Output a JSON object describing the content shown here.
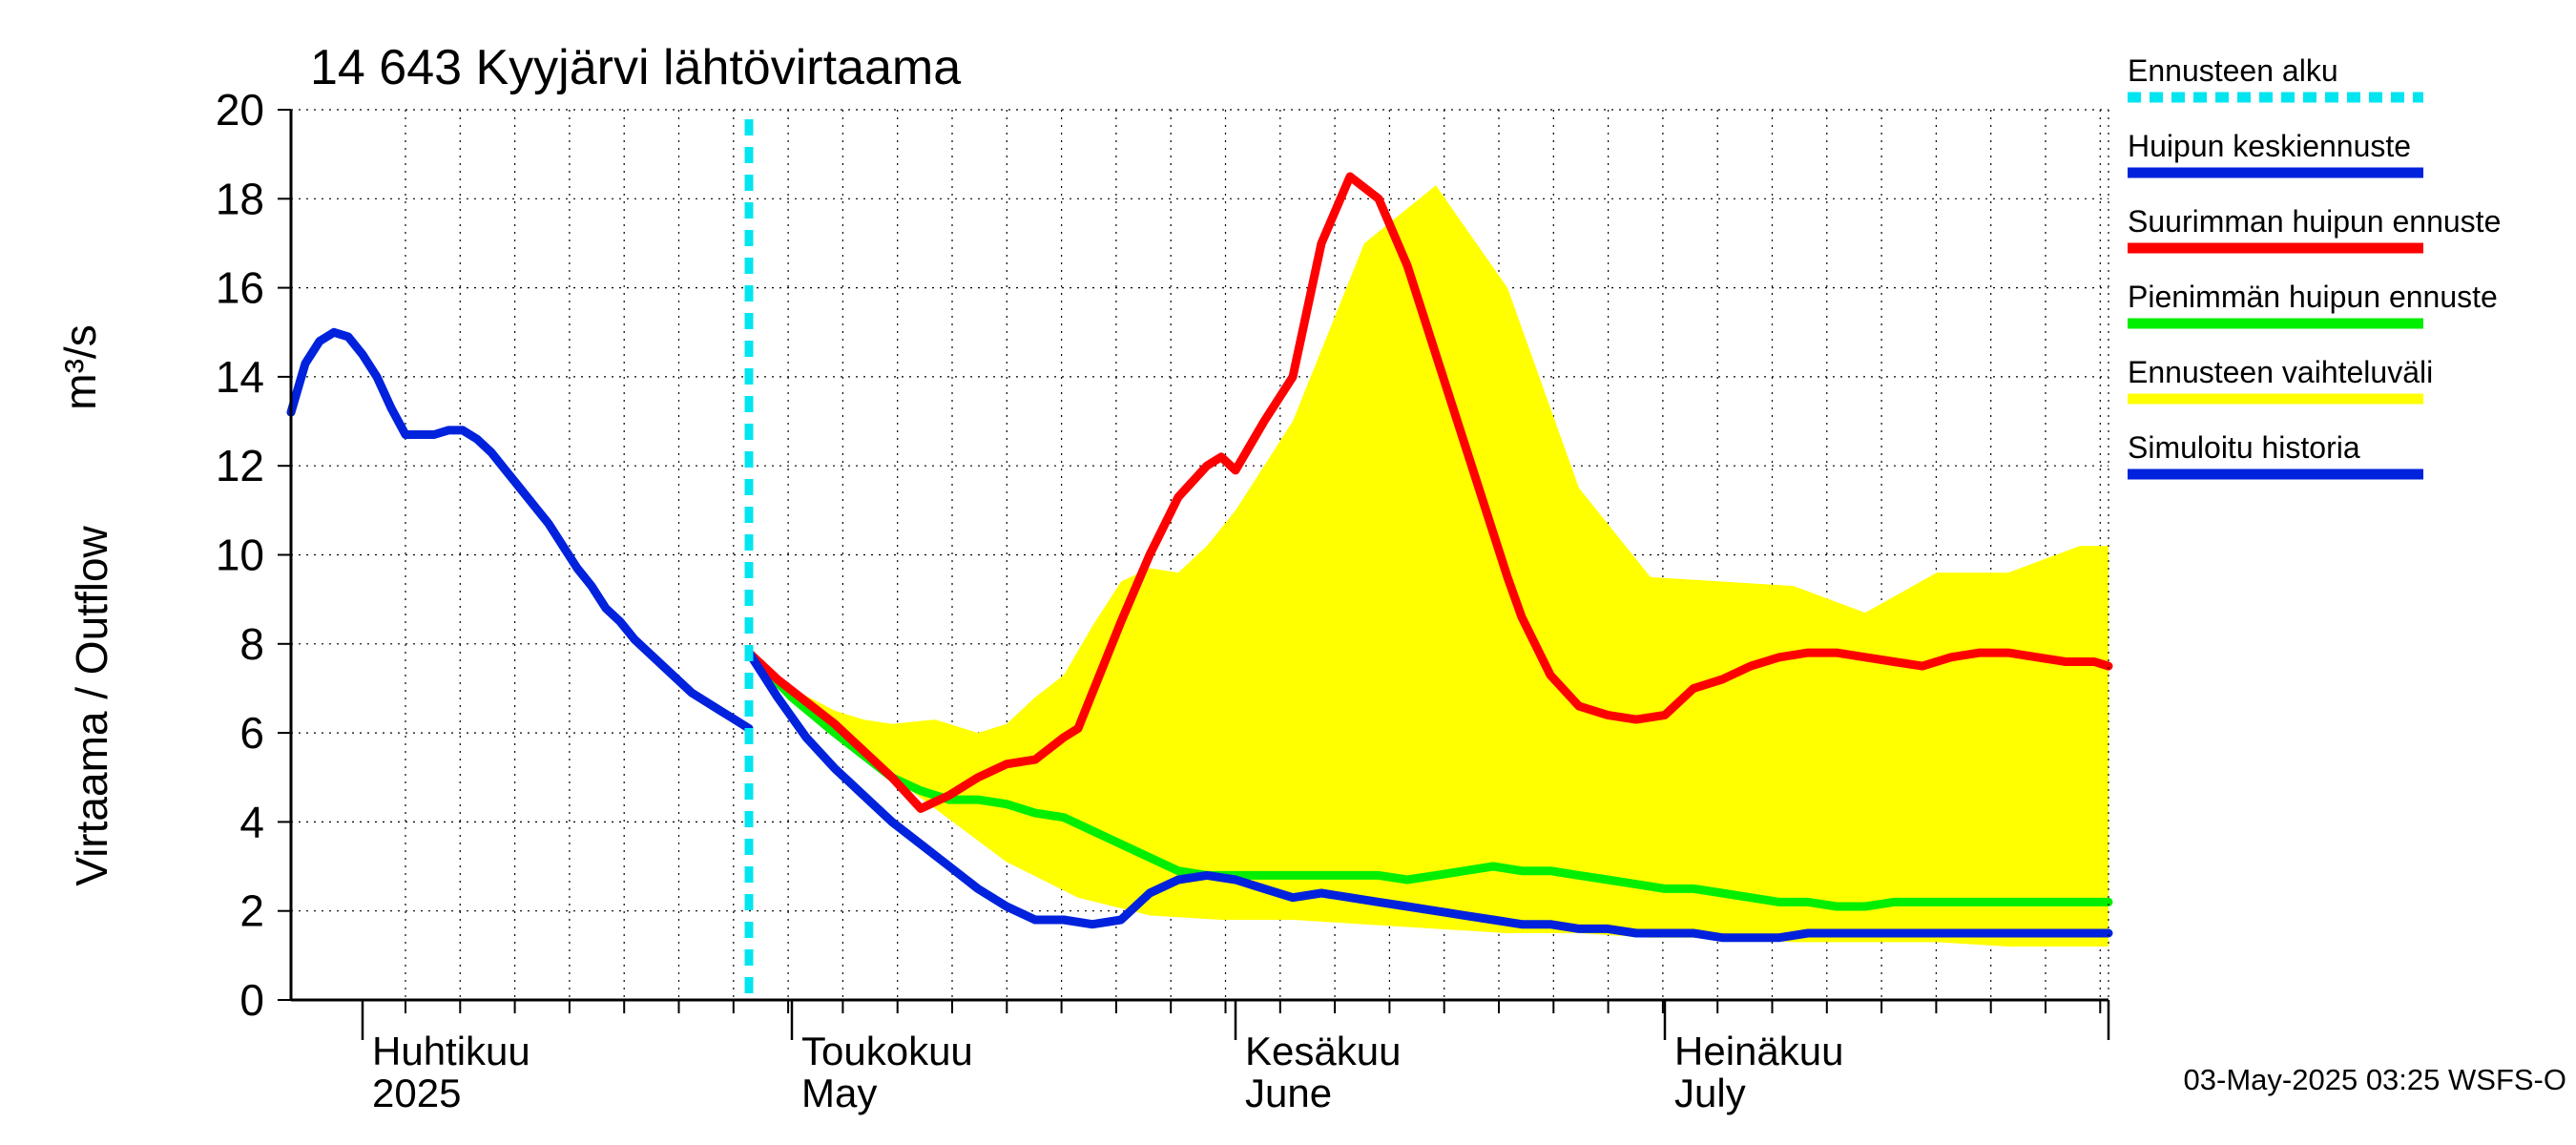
{
  "chart_data": {
    "type": "line",
    "title": "14 643 Kyyjärvi lähtövirtaama",
    "ylabel": "Virtaama / Outflow",
    "yunit": "m³/s",
    "ylim": [
      0,
      20
    ],
    "yticks": [
      0,
      2,
      4,
      6,
      8,
      10,
      12,
      14,
      16,
      18,
      20
    ],
    "x_range_days": [
      0,
      127
    ],
    "x_start_date": "2025-03-27",
    "month_starts_days": [
      5,
      35,
      66,
      96,
      127
    ],
    "month_labels": [
      {
        "fi": "Huhtikuu",
        "en": "2025",
        "day": 5
      },
      {
        "fi": "Toukokuu",
        "en": "May",
        "day": 35
      },
      {
        "fi": "Kesäkuu",
        "en": "June",
        "day": 66
      },
      {
        "fi": "Heinäkuu",
        "en": "July",
        "day": 96
      }
    ],
    "forecast_start_day": 32,
    "footer": "03-May-2025 03:25 WSFS-O",
    "legend": [
      {
        "label": "Ennusteen alku",
        "color": "#00e5f0",
        "dashed": true
      },
      {
        "label": "Huipun keskiennuste",
        "color": "#0022dd"
      },
      {
        "label": "Suurimman huipun ennuste",
        "color": "#ff0000"
      },
      {
        "label": "Pienimmän huipun ennuste",
        "color": "#00ee00"
      },
      {
        "label": "Ennusteen vaihteluväli",
        "color": "#ffff00"
      },
      {
        "label": "Simuloitu historia",
        "color": "#0022dd"
      }
    ],
    "series": [
      {
        "name": "Simuloitu historia",
        "color": "#0022dd",
        "x": [
          0,
          1,
          2,
          3,
          4,
          5,
          6,
          7,
          8,
          9,
          10,
          11,
          12,
          13,
          14,
          15,
          16,
          17,
          18,
          19,
          20,
          21,
          22,
          23,
          24,
          25,
          26,
          27,
          28,
          29,
          30,
          31,
          32
        ],
        "y": [
          13.2,
          14.3,
          14.8,
          15.0,
          14.9,
          14.5,
          14.0,
          13.3,
          12.7,
          12.7,
          12.7,
          12.8,
          12.8,
          12.6,
          12.3,
          11.9,
          11.5,
          11.1,
          10.7,
          10.2,
          9.7,
          9.3,
          8.8,
          8.5,
          8.1,
          7.8,
          7.5,
          7.2,
          6.9,
          6.7,
          6.5,
          6.3,
          6.1
        ]
      },
      {
        "name": "Ennusteen vaihteluväli (yläraja)",
        "color": "#ffff00",
        "x": [
          32,
          35,
          38,
          40,
          42,
          45,
          48,
          50,
          52,
          54,
          56,
          58,
          60,
          62,
          64,
          66,
          70,
          75,
          80,
          85,
          90,
          95,
          100,
          105,
          110,
          115,
          120,
          125,
          127
        ],
        "y": [
          7.8,
          7.0,
          6.5,
          6.3,
          6.2,
          6.3,
          6.0,
          6.2,
          6.8,
          7.3,
          8.4,
          9.4,
          9.7,
          9.6,
          10.2,
          11.0,
          13.0,
          17.0,
          18.3,
          16.0,
          11.5,
          9.5,
          9.4,
          9.3,
          8.7,
          9.6,
          9.6,
          10.2,
          10.2
        ]
      },
      {
        "name": "Ennusteen vaihteluväli (alaraja)",
        "color": "#ffff00",
        "x": [
          32,
          35,
          40,
          45,
          50,
          55,
          60,
          65,
          70,
          75,
          80,
          85,
          90,
          95,
          100,
          105,
          110,
          115,
          120,
          125,
          127
        ],
        "y": [
          7.8,
          6.8,
          5.5,
          4.3,
          3.1,
          2.3,
          1.9,
          1.8,
          1.8,
          1.7,
          1.6,
          1.5,
          1.5,
          1.4,
          1.4,
          1.3,
          1.3,
          1.3,
          1.2,
          1.2,
          1.2
        ]
      },
      {
        "name": "Suurimman huipun ennuste",
        "color": "#ff0000",
        "x": [
          32,
          34,
          36,
          38,
          40,
          42,
          44,
          46,
          48,
          50,
          52,
          54,
          55,
          56,
          58,
          60,
          62,
          64,
          65,
          66,
          68,
          70,
          72,
          74,
          76,
          78,
          79,
          80,
          82,
          84,
          85,
          86,
          88,
          90,
          92,
          94,
          96,
          98,
          100,
          102,
          104,
          106,
          108,
          110,
          112,
          114,
          116,
          118,
          120,
          122,
          124,
          126,
          127
        ],
        "y": [
          7.8,
          7.2,
          6.7,
          6.2,
          5.6,
          5.0,
          4.3,
          4.6,
          5.0,
          5.3,
          5.4,
          5.9,
          6.1,
          6.9,
          8.5,
          10.0,
          11.3,
          12.0,
          12.2,
          11.9,
          13.0,
          14.0,
          17.0,
          18.5,
          18.0,
          16.5,
          15.5,
          14.5,
          12.5,
          10.5,
          9.5,
          8.6,
          7.3,
          6.6,
          6.4,
          6.3,
          6.4,
          7.0,
          7.2,
          7.5,
          7.7,
          7.8,
          7.8,
          7.7,
          7.6,
          7.5,
          7.7,
          7.8,
          7.8,
          7.7,
          7.6,
          7.6,
          7.5
        ]
      },
      {
        "name": "Pienimmän huipun ennuste",
        "color": "#00ee00",
        "x": [
          32,
          35,
          38,
          40,
          42,
          44,
          46,
          48,
          50,
          52,
          54,
          56,
          58,
          60,
          62,
          64,
          66,
          68,
          70,
          72,
          74,
          76,
          78,
          80,
          82,
          84,
          86,
          88,
          90,
          92,
          94,
          96,
          98,
          100,
          102,
          104,
          106,
          108,
          110,
          112,
          114,
          116,
          118,
          120,
          122,
          124,
          126,
          127
        ],
        "y": [
          7.8,
          6.8,
          6.0,
          5.5,
          5.0,
          4.7,
          4.5,
          4.5,
          4.4,
          4.2,
          4.1,
          3.8,
          3.5,
          3.2,
          2.9,
          2.8,
          2.8,
          2.8,
          2.8,
          2.8,
          2.8,
          2.8,
          2.7,
          2.8,
          2.9,
          3.0,
          2.9,
          2.9,
          2.8,
          2.7,
          2.6,
          2.5,
          2.5,
          2.4,
          2.3,
          2.2,
          2.2,
          2.1,
          2.1,
          2.2,
          2.2,
          2.2,
          2.2,
          2.2,
          2.2,
          2.2,
          2.2,
          2.2
        ]
      },
      {
        "name": "Huipun keskiennuste",
        "color": "#0022dd",
        "x": [
          32,
          34,
          36,
          38,
          40,
          42,
          44,
          46,
          48,
          50,
          52,
          54,
          56,
          58,
          60,
          62,
          64,
          66,
          68,
          70,
          72,
          74,
          76,
          78,
          80,
          82,
          84,
          86,
          88,
          90,
          92,
          94,
          96,
          98,
          100,
          102,
          104,
          106,
          108,
          110,
          112,
          114,
          116,
          118,
          120,
          122,
          124,
          126,
          127
        ],
        "y": [
          7.8,
          6.8,
          5.9,
          5.2,
          4.6,
          4.0,
          3.5,
          3.0,
          2.5,
          2.1,
          1.8,
          1.8,
          1.7,
          1.8,
          2.4,
          2.7,
          2.8,
          2.7,
          2.5,
          2.3,
          2.4,
          2.3,
          2.2,
          2.1,
          2.0,
          1.9,
          1.8,
          1.7,
          1.7,
          1.6,
          1.6,
          1.5,
          1.5,
          1.5,
          1.4,
          1.4,
          1.4,
          1.5,
          1.5,
          1.5,
          1.5,
          1.5,
          1.5,
          1.5,
          1.5,
          1.5,
          1.5,
          1.5,
          1.5
        ]
      }
    ]
  }
}
